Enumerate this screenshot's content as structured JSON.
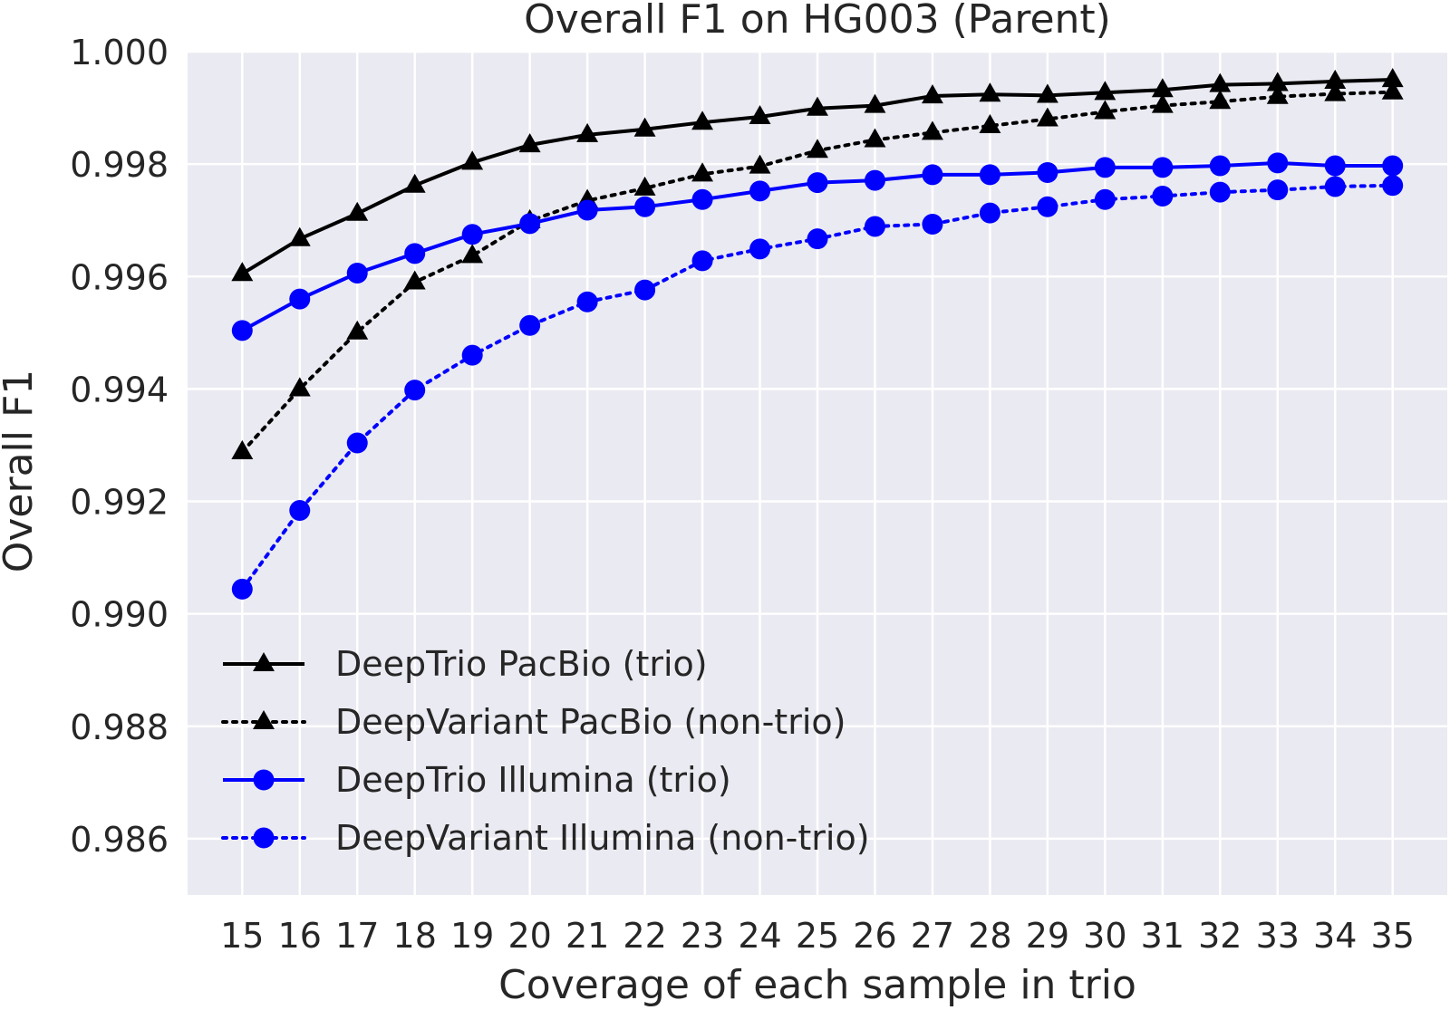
{
  "chart_data": {
    "type": "line",
    "title": "Overall F1 on HG003 (Parent)",
    "xlabel": "Coverage of each sample in trio",
    "ylabel": "Overall F1",
    "xlim": [
      14.05,
      35.95
    ],
    "ylim": [
      0.985,
      1.0
    ],
    "xticks": [
      15,
      16,
      17,
      18,
      19,
      20,
      21,
      22,
      23,
      24,
      25,
      26,
      27,
      28,
      29,
      30,
      31,
      32,
      33,
      34,
      35
    ],
    "yticks": [
      1.0,
      0.998,
      0.996,
      0.994,
      0.992,
      0.99,
      0.988,
      0.986
    ],
    "ytick_labels": [
      "1.000",
      "0.998",
      "0.996",
      "0.994",
      "0.992",
      "0.990",
      "0.988",
      "0.986"
    ],
    "grid": true,
    "legend_position": "lower-left",
    "background": "#eaeaf2",
    "x": [
      15,
      16,
      17,
      18,
      19,
      20,
      21,
      22,
      23,
      24,
      25,
      26,
      27,
      28,
      29,
      30,
      31,
      32,
      33,
      34,
      35
    ],
    "series": [
      {
        "name": "DeepTrio PacBio (trio)",
        "color": "#000000",
        "linestyle": "solid",
        "marker": "triangle",
        "values": [
          0.99605,
          0.99667,
          0.99712,
          0.99762,
          0.99803,
          0.99834,
          0.99852,
          0.99862,
          0.99874,
          0.99884,
          0.99899,
          0.99904,
          0.99921,
          0.99924,
          0.99922,
          0.99927,
          0.99932,
          0.99941,
          0.99943,
          0.99947,
          0.9995
        ]
      },
      {
        "name": "DeepVariant PacBio (non-trio)",
        "color": "#000000",
        "linestyle": "dotted",
        "marker": "triangle",
        "values": [
          0.99288,
          0.994,
          0.99501,
          0.9959,
          0.99637,
          0.99699,
          0.99735,
          0.99757,
          0.99782,
          0.99796,
          0.99824,
          0.99843,
          0.99856,
          0.99868,
          0.9988,
          0.99893,
          0.99904,
          0.99911,
          0.9992,
          0.99925,
          0.99928
        ]
      },
      {
        "name": "DeepTrio Illumina (trio)",
        "color": "#0000ff",
        "linestyle": "solid",
        "marker": "circle",
        "values": [
          0.99504,
          0.9956,
          0.99606,
          0.99641,
          0.99675,
          0.99694,
          0.99718,
          0.99724,
          0.99737,
          0.99752,
          0.99767,
          0.99771,
          0.99781,
          0.99781,
          0.99785,
          0.99794,
          0.99794,
          0.99797,
          0.99802,
          0.99797,
          0.99797
        ]
      },
      {
        "name": "DeepVariant Illumina (non-trio)",
        "color": "#0000ff",
        "linestyle": "dotted",
        "marker": "circle",
        "values": [
          0.99044,
          0.99184,
          0.99304,
          0.99398,
          0.9946,
          0.99513,
          0.99555,
          0.99576,
          0.99628,
          0.99649,
          0.99667,
          0.99689,
          0.99693,
          0.99713,
          0.99724,
          0.99737,
          0.99743,
          0.9975,
          0.99754,
          0.9976,
          0.99762
        ]
      }
    ]
  }
}
